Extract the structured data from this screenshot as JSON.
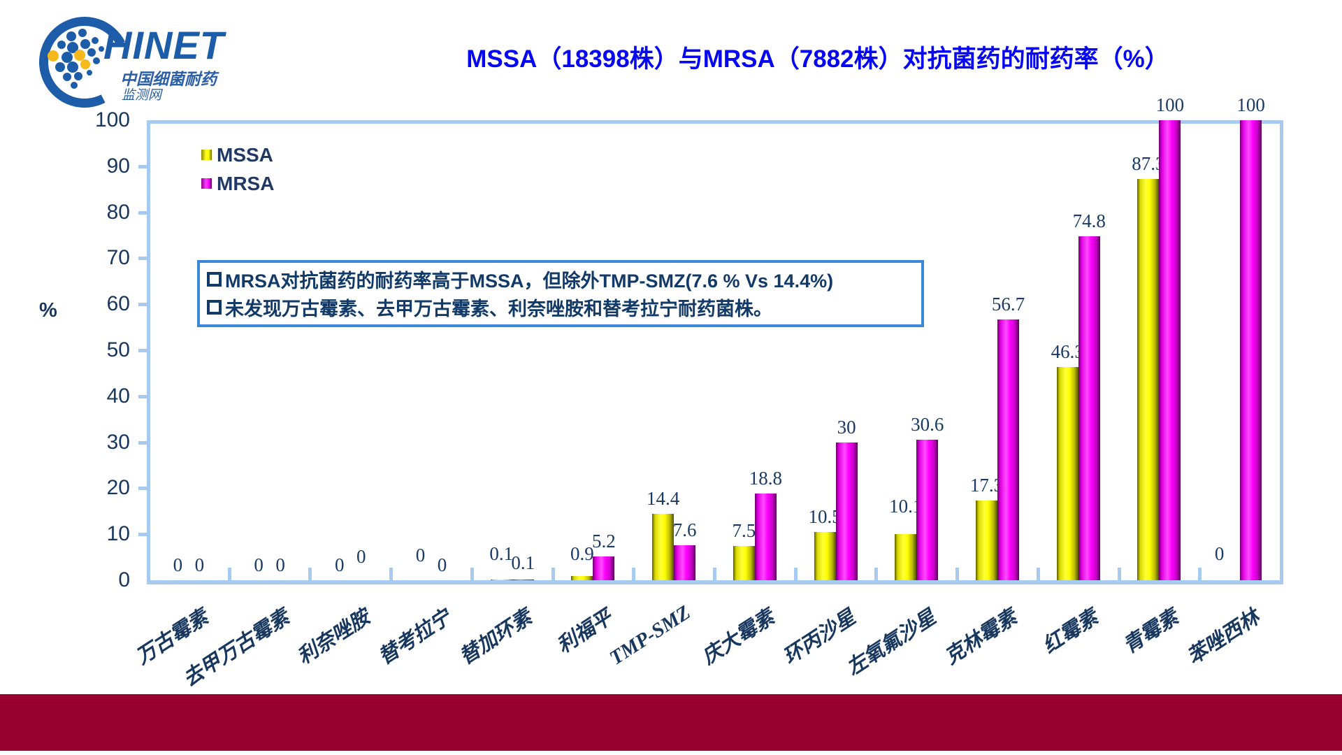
{
  "logo": {
    "brand": "HINET",
    "subtitle1": "中国细菌耐药",
    "subtitle2": "监测网"
  },
  "title": "MSSA（18398株）与MRSA（7882株）对抗菌药的耐药率（%）",
  "legend": {
    "mssa_label": "MSSA",
    "mrsa_label": "MRSA"
  },
  "note_box": {
    "lines": [
      "MRSA对抗菌药的耐药率高于MSSA，但除外TMP-SMZ(7.6 % Vs 14.4%)",
      "未发现万古霉素、去甲万古霉素、利奈唑胺和替考拉宁耐药菌株。"
    ]
  },
  "chart_data": {
    "type": "bar",
    "title": "MSSA（18398株）与MRSA（7882株）对抗菌药的耐药率（%）",
    "xlabel": "",
    "ylabel": "%",
    "ylim": [
      0,
      100
    ],
    "ytick_step": 10,
    "grid": false,
    "legend_position": "top-left-inside",
    "categories": [
      "万古霉素",
      "去甲万古霉素",
      "利奈唑胺",
      "替考拉宁",
      "替加环素",
      "利福平",
      "TMP-SMZ",
      "庆大霉素",
      "环丙沙星",
      "左氧氟沙星",
      "克林霉素",
      "红霉素",
      "青霉素",
      "苯唑西林"
    ],
    "series": [
      {
        "name": "MSSA",
        "color": "#FFFF00",
        "values": [
          0,
          0,
          0,
          0,
          0.1,
          0.9,
          14.4,
          7.5,
          10.5,
          10.1,
          17.3,
          46.3,
          87.3,
          0
        ]
      },
      {
        "name": "MRSA",
        "color": "#FF00FF",
        "values": [
          0,
          0,
          0,
          0,
          0.1,
          5.2,
          7.6,
          18.8,
          30,
          30.6,
          56.7,
          74.8,
          100,
          100
        ]
      }
    ]
  },
  "colors": {
    "title_blue": "#0606F2",
    "axis_light_blue": "#A6CAF0",
    "tick_text": "#17375E",
    "data_label_text": "#1A3A63",
    "legend_text": "#1F3864",
    "note_border": "#3C87D8",
    "note_text": "#123A68",
    "footer_band": "#980030",
    "mssa_bar": "#FFFF00",
    "mrsa_bar": "#FF00FF",
    "logo_blue": "#1D5CA8",
    "logo_yellow": "#F5B91E"
  }
}
